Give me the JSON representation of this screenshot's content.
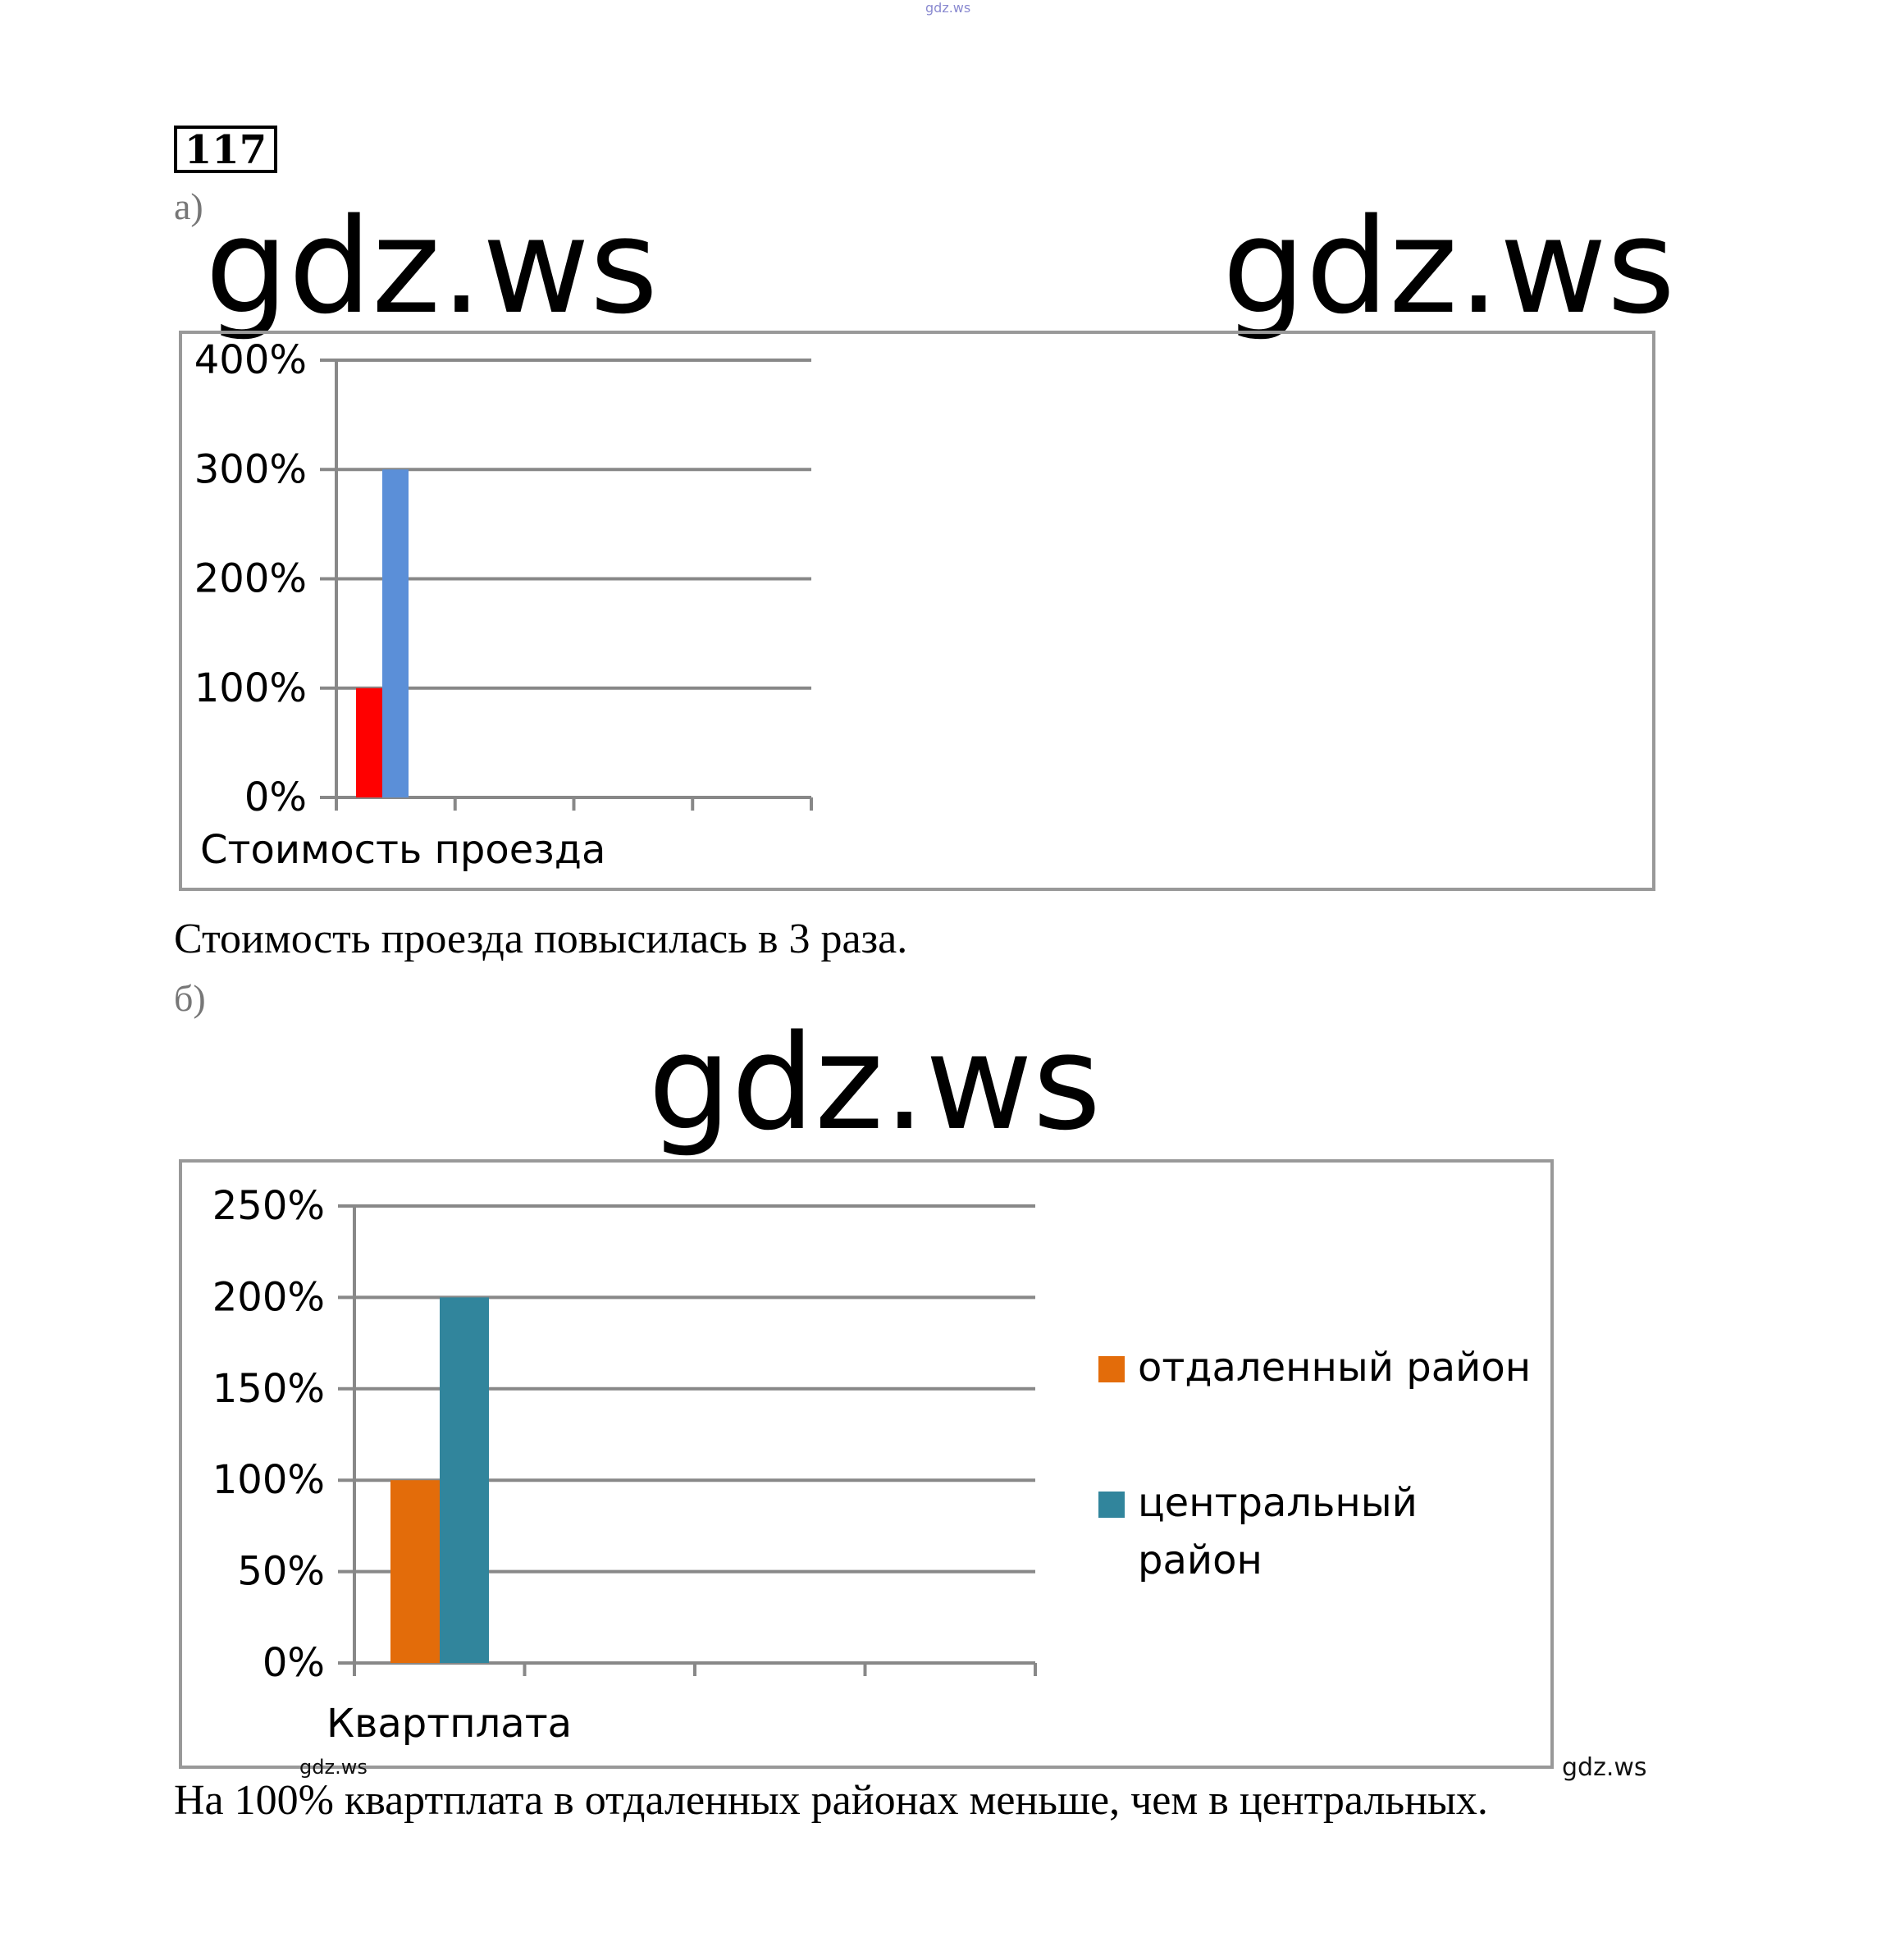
{
  "problem_number": "117",
  "watermarks": {
    "top_tiny": "gdz.ws",
    "big": "gdz.ws",
    "small": "gdz.ws"
  },
  "part_a": {
    "label": "а)",
    "conclusion": "Стоимость проезда повысилась в 3 раза."
  },
  "part_b": {
    "label": "б)",
    "conclusion": "На 100% квартплата в отдаленных районах меньше, чем в центральных."
  },
  "chart_data": [
    {
      "type": "bar",
      "categories": [
        "Стоимость проезда"
      ],
      "series": [
        {
          "values": [
            100
          ],
          "color": "#ff0000"
        },
        {
          "values": [
            300
          ],
          "color": "#5b8fd8"
        }
      ],
      "yticks": [
        "0%",
        "100%",
        "200%",
        "300%",
        "400%"
      ],
      "ylim": [
        0,
        400
      ],
      "grid": true,
      "legend": "none"
    },
    {
      "type": "bar",
      "categories": [
        "Квартплата"
      ],
      "series": [
        {
          "name": "отдаленный район",
          "values": [
            100
          ],
          "color": "#e36c0a"
        },
        {
          "name": "центральный район",
          "values": [
            200
          ],
          "color": "#31859c"
        }
      ],
      "yticks": [
        "0%",
        "50%",
        "100%",
        "150%",
        "200%",
        "250%"
      ],
      "ylim": [
        0,
        250
      ],
      "grid": true,
      "legend": "right",
      "legend_lines": [
        [
          "отдаленный район"
        ],
        [
          "центральный",
          "район"
        ]
      ]
    }
  ]
}
